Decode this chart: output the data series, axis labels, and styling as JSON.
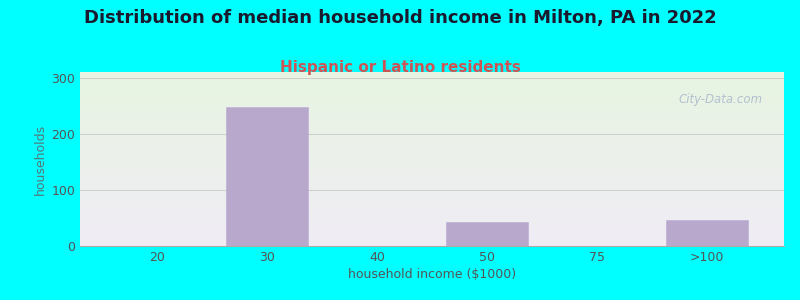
{
  "title": "Distribution of median household income in Milton, PA in 2022",
  "subtitle": "Hispanic or Latino residents",
  "xlabel": "household income ($1000)",
  "ylabel": "households",
  "background_color": "#00FFFF",
  "plot_bg_top_color": "#e8f5e2",
  "plot_bg_bottom_color": "#f0ecf5",
  "bar_color": "#b8a8cc",
  "bar_edge_color": "#c0b0d8",
  "categories": [
    "20",
    "30",
    "40",
    "50",
    "75",
    ">100"
  ],
  "values": [
    0,
    248,
    0,
    42,
    0,
    46
  ],
  "bar_positions": [
    1,
    2,
    3,
    4,
    5,
    6
  ],
  "xlim": [
    0.3,
    6.7
  ],
  "ylim": [
    0,
    310
  ],
  "yticks": [
    0,
    100,
    200,
    300
  ],
  "grid_color": "#cccccc",
  "title_fontsize": 13,
  "title_color": "#1a1a2e",
  "subtitle_fontsize": 11,
  "subtitle_color": "#cc5555",
  "axis_label_fontsize": 9,
  "axis_label_color": "#555555",
  "tick_fontsize": 9,
  "tick_color": "#555555",
  "ylabel_color": "#557777",
  "watermark_text": "City-Data.com",
  "watermark_color": "#aabbcc",
  "bar_width": 0.75
}
